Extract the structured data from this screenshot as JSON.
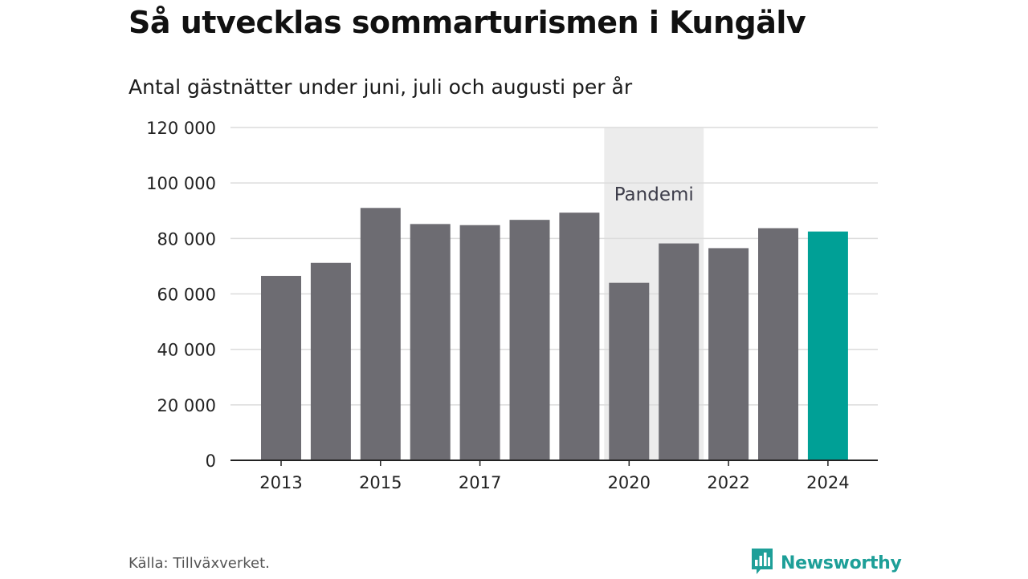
{
  "title": "Så utvecklas sommarturismen i Kungälv",
  "subtitle": "Antal gästnätter under juni, juli och augusti per år",
  "source": "Källa: Tillväxverket.",
  "brand": {
    "name": "Newsworthy",
    "icon": "newsworthy-logo-icon",
    "color": "#1d9f98"
  },
  "colors": {
    "bar": "#6d6c72",
    "highlight": "#00a096",
    "band": "#ececec",
    "grid": "#dcdcdc",
    "axis": "#222222"
  },
  "chart_data": {
    "type": "bar",
    "categories": [
      "2013",
      "2014",
      "2015",
      "2016",
      "2017",
      "2018",
      "2019",
      "2020",
      "2021",
      "2022",
      "2023",
      "2024"
    ],
    "values": [
      66500,
      71200,
      91000,
      85200,
      84800,
      86700,
      89300,
      64000,
      78200,
      76500,
      83700,
      82500
    ],
    "highlight_index": 11,
    "x_tick_labels": [
      "2013",
      "",
      "2015",
      "",
      "2017",
      "",
      "",
      "2020",
      "",
      "2022",
      "",
      "2024"
    ],
    "y_ticks": [
      0,
      20000,
      40000,
      60000,
      80000,
      100000,
      120000
    ],
    "y_tick_labels": [
      "0",
      "20 000",
      "40 000",
      "60 000",
      "80 000",
      "100 000",
      "120 000"
    ],
    "ylim": [
      0,
      120000
    ],
    "grid": true,
    "annotation": {
      "label": "Pandemi",
      "from_category": "2020",
      "to_category": "2021"
    },
    "xlabel": "",
    "ylabel": ""
  }
}
